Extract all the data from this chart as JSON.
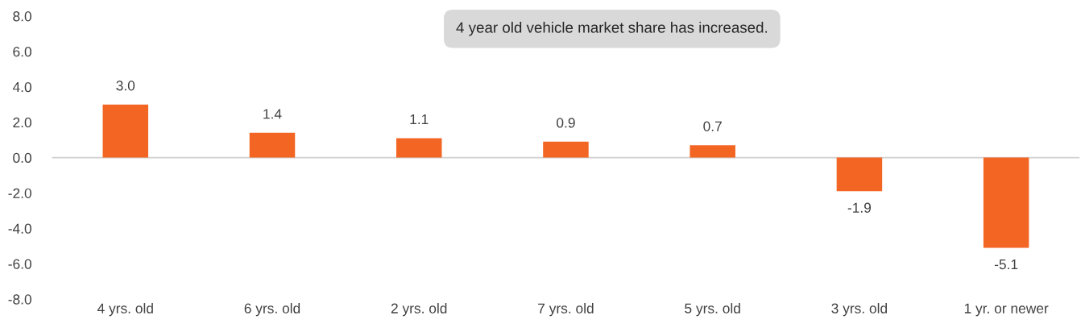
{
  "chart_data": {
    "type": "bar",
    "categories": [
      "4 yrs. old",
      "6 yrs. old",
      "2 yrs. old",
      "7 yrs. old",
      "5 yrs. old",
      "3 yrs. old",
      "1 yr. or newer"
    ],
    "values": [
      3.0,
      1.4,
      1.1,
      0.9,
      0.7,
      -1.9,
      -5.1
    ],
    "value_labels": [
      "3.0",
      "1.4",
      "1.1",
      "0.9",
      "0.7",
      "-1.9",
      "-5.1"
    ],
    "color": "#f26522",
    "ylim": [
      -8,
      8
    ],
    "yticks": [
      {
        "value": -8,
        "label": "-8.0"
      },
      {
        "value": -6,
        "label": "-6.0"
      },
      {
        "value": -4,
        "label": "-4.0"
      },
      {
        "value": -2,
        "label": "-2.0"
      },
      {
        "value": 0,
        "label": "0.0"
      },
      {
        "value": 2,
        "label": "2.0"
      },
      {
        "value": 4,
        "label": "4.0"
      },
      {
        "value": 6,
        "label": "6.0"
      },
      {
        "value": 8,
        "label": "8.0"
      }
    ],
    "annotations": [
      "4 year old vehicle market share has increased."
    ],
    "ref_lines": [
      {
        "axis": "y",
        "value": 0,
        "color": "#d0d0d0"
      }
    ],
    "legend": false
  }
}
